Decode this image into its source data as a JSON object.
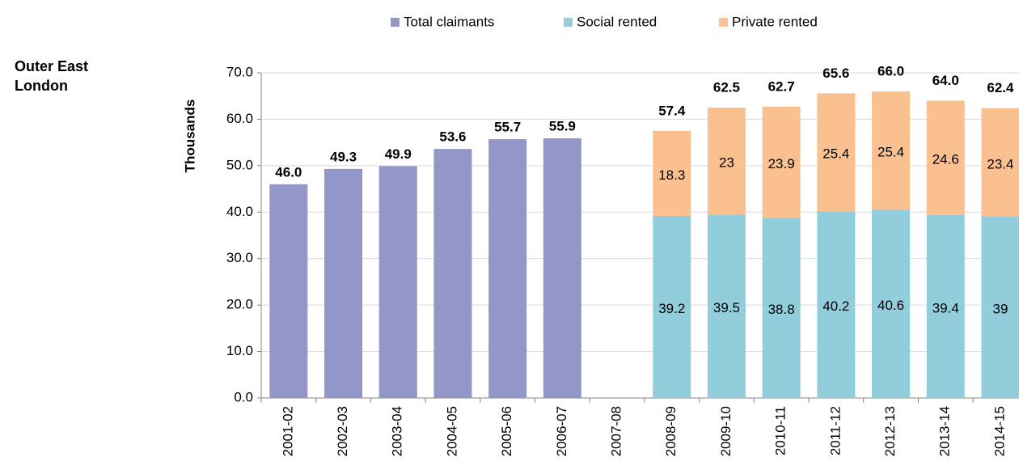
{
  "chart_data": {
    "type": "stacked_bar",
    "panel_label": "Outer East London",
    "y_label": "Thousands",
    "categories": [
      "2001-02",
      "2002-03",
      "2003-04",
      "2004-05",
      "2005-06",
      "2006-07",
      "2007-08",
      "2008-09",
      "2009-10",
      "2010-11",
      "2011-12",
      "2012-13",
      "2013-14",
      "2014-15"
    ],
    "series": [
      {
        "name": "Total claimants",
        "color": "#9296c8",
        "values": [
          46.0,
          49.3,
          49.9,
          53.6,
          55.7,
          55.9,
          null,
          null,
          null,
          null,
          null,
          null,
          null,
          null
        ],
        "value_labels": [
          "46.0",
          "49.3",
          "49.9",
          "53.6",
          "55.7",
          "55.9",
          null,
          null,
          null,
          null,
          null,
          null,
          null,
          null
        ]
      },
      {
        "name": "Social rented",
        "color": "#92cddc",
        "values": [
          null,
          null,
          null,
          null,
          null,
          null,
          null,
          39.2,
          39.5,
          38.8,
          40.2,
          40.6,
          39.4,
          39.0
        ]
      },
      {
        "name": "Private rented",
        "color": "#fac090",
        "values": [
          null,
          null,
          null,
          null,
          null,
          null,
          null,
          18.3,
          23.0,
          23.9,
          25.4,
          25.4,
          24.6,
          23.4
        ]
      }
    ],
    "total_labels": [
      null,
      null,
      null,
      null,
      null,
      null,
      null,
      "57.4",
      "62.5",
      "62.7",
      "65.6",
      "66.0",
      "64.0",
      "62.4"
    ],
    "ylim": [
      0,
      70
    ],
    "yticks": [
      {
        "value": 0,
        "label": "0.0"
      },
      {
        "value": 10,
        "label": "10.0"
      },
      {
        "value": 20,
        "label": "20.0"
      },
      {
        "value": 30,
        "label": "30.0"
      },
      {
        "value": 40,
        "label": "40.0"
      },
      {
        "value": 50,
        "label": "50.0"
      },
      {
        "value": 60,
        "label": "60.0"
      },
      {
        "value": 70,
        "label": "70.0"
      }
    ],
    "grid": true
  }
}
